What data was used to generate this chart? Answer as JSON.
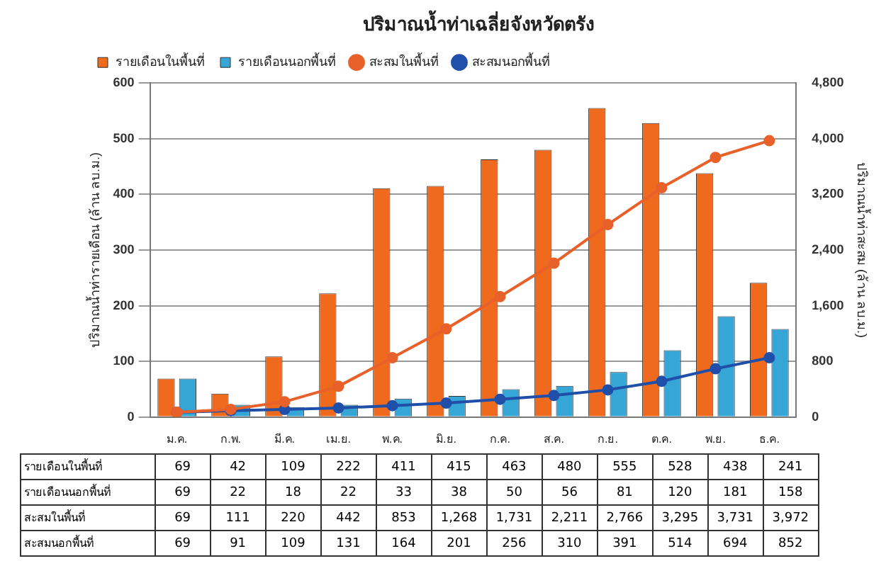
{
  "chart_data": {
    "type": "bar",
    "title": "ปริมาณน้ำท่าเฉลี่ยจังหวัดตรัง",
    "ylabel": "ปริมาณน้ำท่ารายเดือน (ล้าน ลบ.ม.)",
    "y2label": "ปริมาณน้ำท่าสะสม (ล้าน ลบ.ม.)",
    "categories": [
      "ม.ค.",
      "ก.พ.",
      "มี.ค.",
      "เม.ย.",
      "พ.ค.",
      "มิ.ย.",
      "ก.ค.",
      "ส.ค.",
      "ก.ย.",
      "ต.ค.",
      "พ.ย.",
      "ธ.ค."
    ],
    "series": [
      {
        "name": "รายเดือนในพื้นที่",
        "color": "#f06a1e",
        "values": [
          69,
          42,
          109,
          222,
          411,
          415,
          463,
          480,
          555,
          528,
          438,
          241
        ],
        "value_labels": [
          "69",
          "42",
          "109",
          "222",
          "411",
          "415",
          "463",
          "480",
          "555",
          "528",
          "438",
          "241"
        ]
      },
      {
        "name": "รายเดือนนอกพื้นที่",
        "color": "#35a6d6",
        "values": [
          69,
          22,
          18,
          22,
          33,
          38,
          50,
          56,
          81,
          120,
          181,
          158
        ],
        "value_labels": [
          "69",
          "22",
          "18",
          "22",
          "33",
          "38",
          "50",
          "56",
          "81",
          "120",
          "181",
          "158"
        ]
      },
      {
        "name": "สะสมในพื้นที่",
        "type": "line",
        "axis": "y2",
        "color": "#e8602a",
        "values": [
          69,
          111,
          220,
          442,
          853,
          1268,
          1731,
          2211,
          2766,
          3295,
          3731,
          3972
        ],
        "value_labels": [
          "69",
          "111",
          "220",
          "442",
          "853",
          "1,268",
          "1,731",
          "2,211",
          "2,766",
          "3,295",
          "3,731",
          "3,972"
        ]
      },
      {
        "name": "สะสมนอกพื้นที่",
        "type": "line",
        "axis": "y2",
        "color": "#1f4fa8",
        "values": [
          69,
          91,
          109,
          131,
          164,
          201,
          256,
          310,
          391,
          514,
          694,
          852
        ],
        "value_labels": [
          "69",
          "91",
          "109",
          "131",
          "164",
          "201",
          "256",
          "310",
          "391",
          "514",
          "694",
          "852"
        ]
      }
    ],
    "ylim": [
      0,
      600
    ],
    "yticks": [
      0,
      100,
      200,
      300,
      400,
      500,
      600
    ],
    "y2lim": [
      0,
      4800
    ],
    "y2ticks": [
      0,
      {
        "value": 800,
        "label": "800"
      },
      {
        "value": 1600,
        "label": "1,600"
      },
      {
        "value": 2400,
        "label": "2,400"
      },
      {
        "value": 3200,
        "label": "3,200"
      },
      {
        "value": 4000,
        "label": "4,000"
      },
      {
        "value": 4800,
        "label": "4,800"
      }
    ],
    "grid": "y",
    "legend": "top left",
    "marker": "circle"
  }
}
